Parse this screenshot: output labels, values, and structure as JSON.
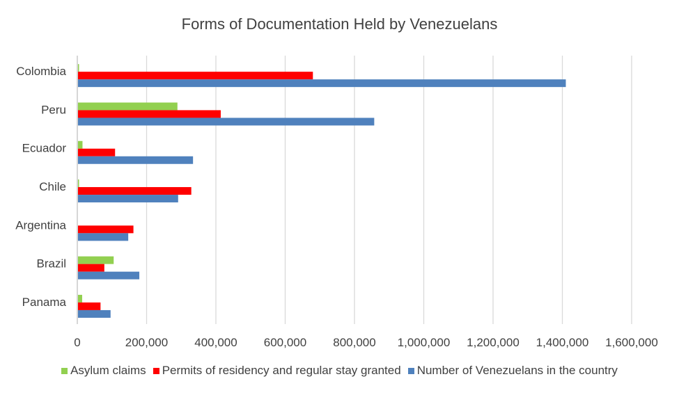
{
  "chart_data": {
    "type": "bar",
    "orientation": "horizontal",
    "title": "Forms of Documentation Held by Venezuelans",
    "categories": [
      "Colombia",
      "Peru",
      "Ecuador",
      "Chile",
      "Argentina",
      "Brazil",
      "Panama"
    ],
    "series": [
      {
        "name": "Asylum claims",
        "color": "#92d050",
        "values": [
          3000,
          287000,
          13000,
          3000,
          0,
          103000,
          12000
        ]
      },
      {
        "name": "Permits of residency and regular stay granted",
        "color": "#ff0000",
        "values": [
          678000,
          412000,
          107000,
          327000,
          160000,
          76000,
          65000
        ]
      },
      {
        "name": "Number of Venezuelans in the country",
        "color": "#4f81bd",
        "values": [
          1408000,
          855000,
          332000,
          289000,
          145000,
          177000,
          94000
        ]
      }
    ],
    "x_ticks": [
      "0",
      "200,000",
      "400,000",
      "600,000",
      "800,000",
      "1,000,000",
      "1,200,000",
      "1,400,000",
      "1,600,000"
    ],
    "xlim": [
      0,
      1600000
    ],
    "grid": true,
    "legend_position": "bottom"
  }
}
